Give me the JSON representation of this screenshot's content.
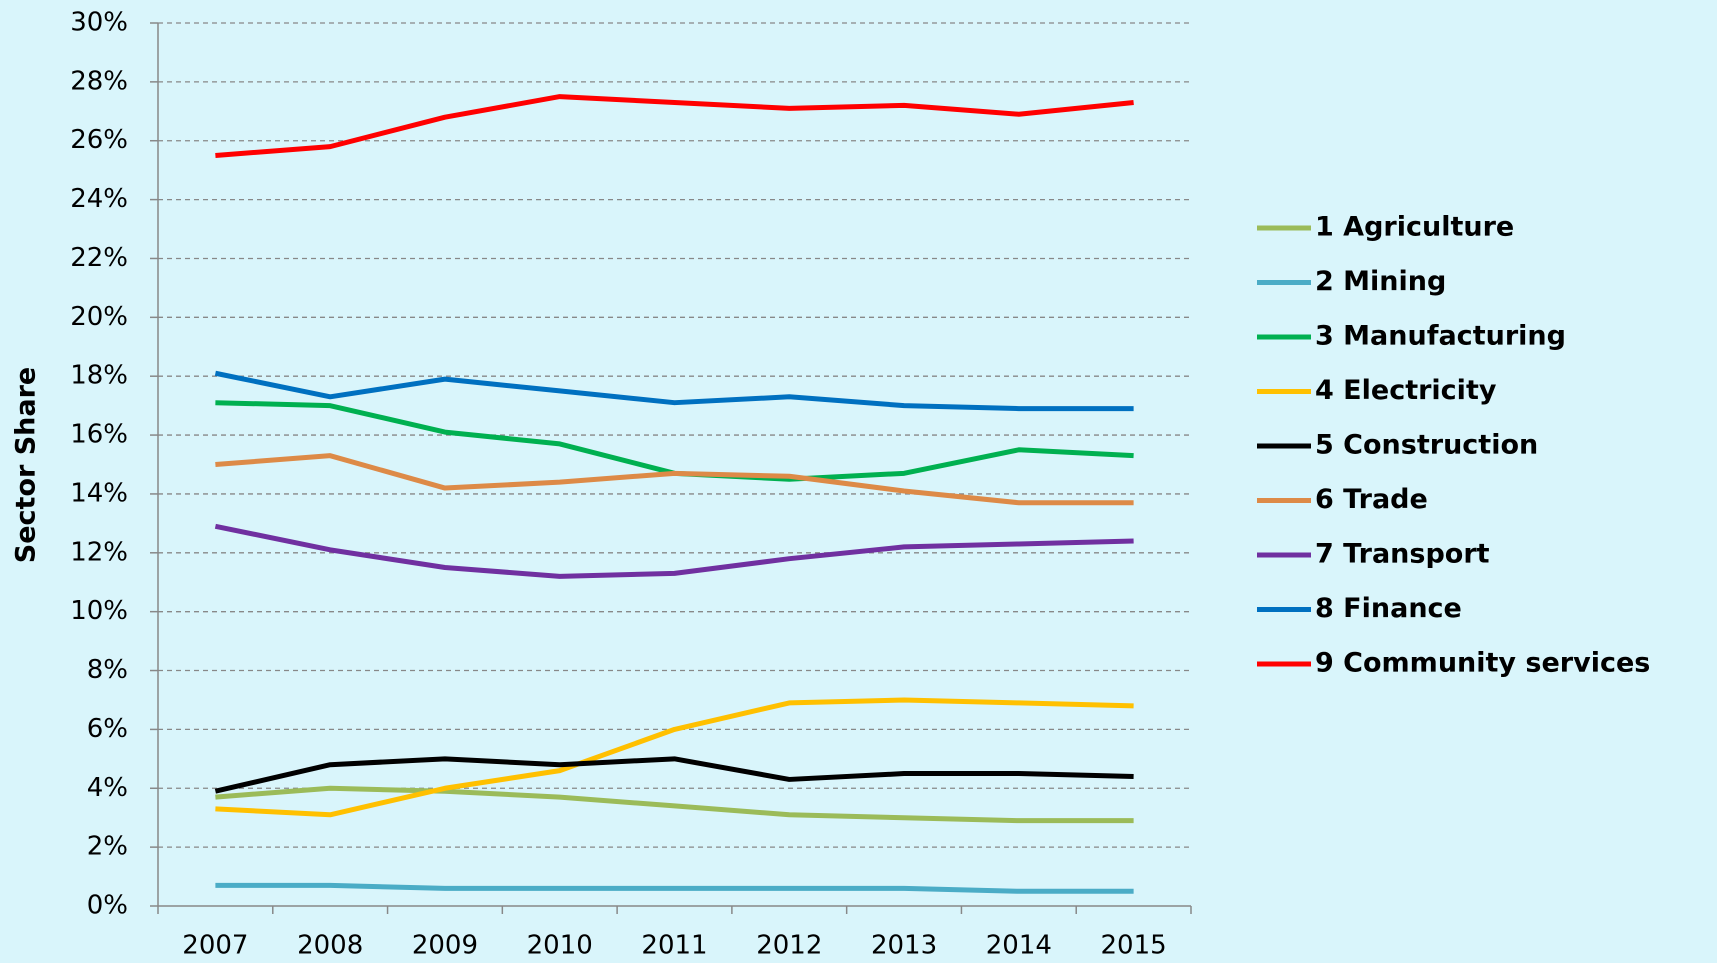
{
  "chart_data": {
    "type": "line",
    "y_label": "Sector Share",
    "categories": [
      "2007",
      "2008",
      "2009",
      "2010",
      "2011",
      "2012",
      "2013",
      "2014",
      "2015"
    ],
    "series": [
      {
        "name": "1 Agriculture",
        "color": "#9bbb59",
        "values": [
          3.7,
          4.0,
          3.9,
          3.7,
          3.4,
          3.1,
          3.0,
          2.9,
          2.9
        ]
      },
      {
        "name": "2 Mining",
        "color": "#4bacc6",
        "values": [
          0.7,
          0.7,
          0.6,
          0.6,
          0.6,
          0.6,
          0.6,
          0.5,
          0.5
        ]
      },
      {
        "name": "3 Manufacturing",
        "color": "#00b050",
        "values": [
          17.1,
          17.0,
          16.1,
          15.7,
          14.7,
          14.5,
          14.7,
          15.5,
          15.3
        ]
      },
      {
        "name": "4 Electricity",
        "color": "#ffc000",
        "values": [
          3.3,
          3.1,
          4.0,
          4.6,
          6.0,
          6.9,
          7.0,
          6.9,
          6.8
        ]
      },
      {
        "name": "5 Construction",
        "color": "#000000",
        "values": [
          3.9,
          4.8,
          5.0,
          4.8,
          5.0,
          4.3,
          4.5,
          4.5,
          4.4
        ]
      },
      {
        "name": "6 Trade",
        "color": "#dd8a47",
        "values": [
          15.0,
          15.3,
          14.2,
          14.4,
          14.7,
          14.6,
          14.1,
          13.7,
          13.7
        ]
      },
      {
        "name": "7 Transport",
        "color": "#7030a0",
        "values": [
          12.9,
          12.1,
          11.5,
          11.2,
          11.3,
          11.8,
          12.2,
          12.3,
          12.4
        ]
      },
      {
        "name": "8 Finance",
        "color": "#0070c0",
        "values": [
          18.1,
          17.3,
          17.9,
          17.5,
          17.1,
          17.3,
          17.0,
          16.9,
          16.9
        ]
      },
      {
        "name": "9 Community services",
        "color": "#ff0000",
        "values": [
          25.5,
          25.8,
          26.8,
          27.5,
          27.3,
          27.1,
          27.2,
          26.9,
          27.3
        ]
      }
    ],
    "ylim": [
      0,
      30
    ],
    "yticks": [
      {
        "value": 0,
        "label": "0%"
      },
      {
        "value": 2,
        "label": "2%"
      },
      {
        "value": 4,
        "label": "4%"
      },
      {
        "value": 6,
        "label": "6%"
      },
      {
        "value": 8,
        "label": "8%"
      },
      {
        "value": 10,
        "label": "10%"
      },
      {
        "value": 12,
        "label": "12%"
      },
      {
        "value": 14,
        "label": "14%"
      },
      {
        "value": 16,
        "label": "16%"
      },
      {
        "value": 18,
        "label": "18%"
      },
      {
        "value": 20,
        "label": "20%"
      },
      {
        "value": 22,
        "label": "22%"
      },
      {
        "value": 24,
        "label": "24%"
      },
      {
        "value": 26,
        "label": "26%"
      },
      {
        "value": 28,
        "label": "28%"
      },
      {
        "value": 30,
        "label": "30%"
      }
    ],
    "grid": true,
    "legend": "right"
  }
}
